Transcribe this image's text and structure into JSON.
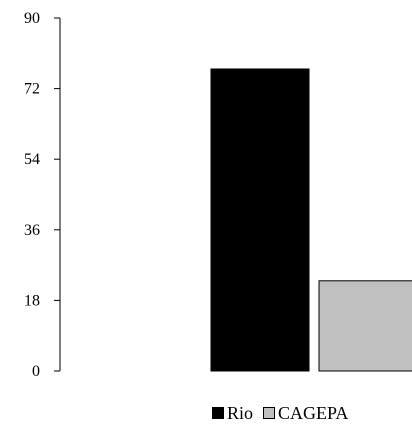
{
  "chart_data": {
    "type": "bar",
    "title": "",
    "xlabel": "",
    "ylabel": "",
    "categories": [
      ""
    ],
    "ylim": [
      0,
      90
    ],
    "yticks": [
      0,
      18,
      36,
      54,
      72,
      90
    ],
    "grid": false,
    "legend_position": "bottom",
    "series": [
      {
        "name": "Rio",
        "values": [
          77
        ],
        "color": "#000000"
      },
      {
        "name": "CAGEPA",
        "values": [
          23
        ],
        "color": "#c0c0c0"
      }
    ]
  }
}
